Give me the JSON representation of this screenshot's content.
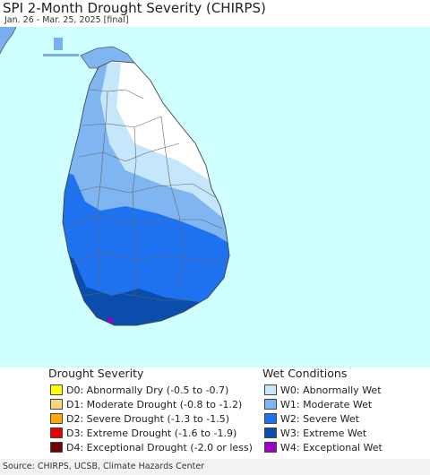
{
  "header": {
    "title": "SPI 2-Month Drought Severity (CHIRPS)",
    "subtitle": "Jan. 26 - Mar. 25, 2025 [final]"
  },
  "map": {
    "region": "Sri Lanka",
    "colors": {
      "water": "#cfffff",
      "india_land": "#7aaef2",
      "normal": "#ffffff",
      "w0": "#c6e6fb",
      "w1": "#7fb6f1",
      "w2": "#1e72ef",
      "w3": "#0b4dac",
      "w4": "#a000c8",
      "boundary": "#555555"
    }
  },
  "legend": {
    "drought": {
      "title": "Drought Severity",
      "items": [
        {
          "label": "D0: Abnormally Dry (-0.5 to -0.7)",
          "color": "#ffff00"
        },
        {
          "label": "D1: Moderate Drought (-0.8 to -1.2)",
          "color": "#fcd37f"
        },
        {
          "label": "D2: Severe Drought (-1.3 to -1.5)",
          "color": "#ffaa00"
        },
        {
          "label": "D3: Extreme Drought (-1.6 to -1.9)",
          "color": "#e60000"
        },
        {
          "label": "D4: Exceptional Drought (-2.0 or less)",
          "color": "#730000"
        }
      ]
    },
    "wet": {
      "title": "Wet Conditions",
      "items": [
        {
          "label": "W0: Abnormally Wet",
          "color": "#c6e6fb"
        },
        {
          "label": "W1: Moderate Wet",
          "color": "#7fb6f1"
        },
        {
          "label": "W2: Severe Wet",
          "color": "#1e72ef"
        },
        {
          "label": "W3: Extreme Wet",
          "color": "#0b4dac"
        },
        {
          "label": "W4: Exceptional Wet",
          "color": "#a000c8"
        }
      ]
    }
  },
  "footer": {
    "source": "Source: CHIRPS, UCSB, Climate Hazards Center"
  }
}
